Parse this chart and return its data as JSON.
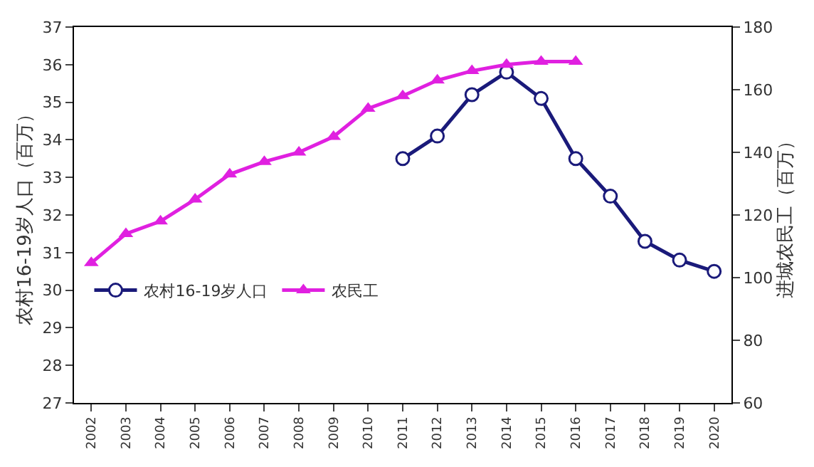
{
  "chart_data": {
    "type": "line",
    "categories": [
      "2002",
      "2003",
      "2004",
      "2005",
      "2006",
      "2007",
      "2008",
      "2009",
      "2010",
      "2011",
      "2012",
      "2013",
      "2014",
      "2015",
      "2016",
      "2017",
      "2018",
      "2019",
      "2020"
    ],
    "ylabel": "农村16-19岁人口（百万）",
    "y2label": "进城农民工（百万）",
    "series": [
      {
        "name": "农村16-19岁人口",
        "color": "#1a1a7a",
        "marker": "circle",
        "values": [
          null,
          null,
          null,
          null,
          null,
          null,
          null,
          null,
          null,
          33.5,
          34.1,
          35.2,
          35.8,
          35.1,
          33.5,
          32.5,
          31.3,
          30.8,
          30.5
        ]
      },
      {
        "name": "农民工",
        "color": "#e020e0",
        "marker": "triangle",
        "axis": "y2",
        "values": [
          104.7,
          114,
          118,
          125,
          133,
          137,
          140,
          145,
          154,
          158,
          163,
          166,
          168,
          169,
          169,
          null,
          null,
          null,
          null
        ]
      }
    ],
    "ylim": [
      27,
      37
    ],
    "yticks": [
      27,
      28,
      29,
      30,
      31,
      32,
      33,
      34,
      35,
      36,
      37
    ],
    "y2lim": [
      60,
      180
    ],
    "y2ticks": [
      60,
      80,
      100,
      120,
      140,
      160,
      180
    ],
    "legend": "left"
  }
}
